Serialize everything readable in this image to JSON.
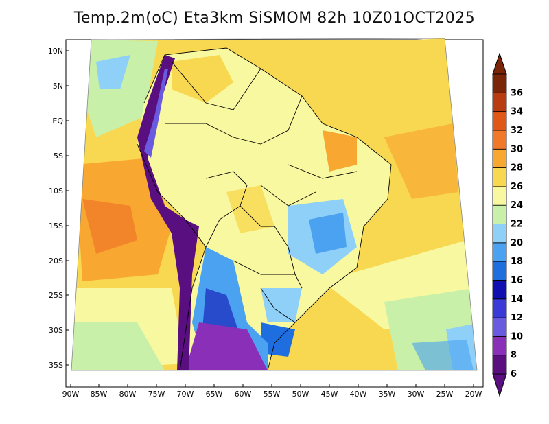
{
  "title": "Temp.2m(oC) Eta3km SiSMOM 82h 10Z01OCT2025",
  "latitude_labels": [
    "10N",
    "5N",
    "EQ",
    "5S",
    "10S",
    "15S",
    "20S",
    "25S",
    "30S",
    "35S"
  ],
  "longitude_labels": [
    "90W",
    "85W",
    "80W",
    "75W",
    "70W",
    "65W",
    "60W",
    "55W",
    "50W",
    "45W",
    "40W",
    "35W",
    "30W",
    "25W",
    "20W"
  ],
  "colorbar": {
    "labels": [
      "6",
      "8",
      "10",
      "12",
      "14",
      "16",
      "18",
      "20",
      "22",
      "24",
      "26",
      "28",
      "30",
      "32",
      "34",
      "36"
    ],
    "colors": [
      "#5a0f80",
      "#8a2fb8",
      "#6a5ae0",
      "#3a3ad8",
      "#1010b0",
      "#1f6ee0",
      "#4aa2f0",
      "#8fd0f8",
      "#c8f0a8",
      "#f8f8a0",
      "#f8d850",
      "#f8a830",
      "#f07828",
      "#e05818",
      "#b83c10",
      "#7a2408"
    ]
  }
}
